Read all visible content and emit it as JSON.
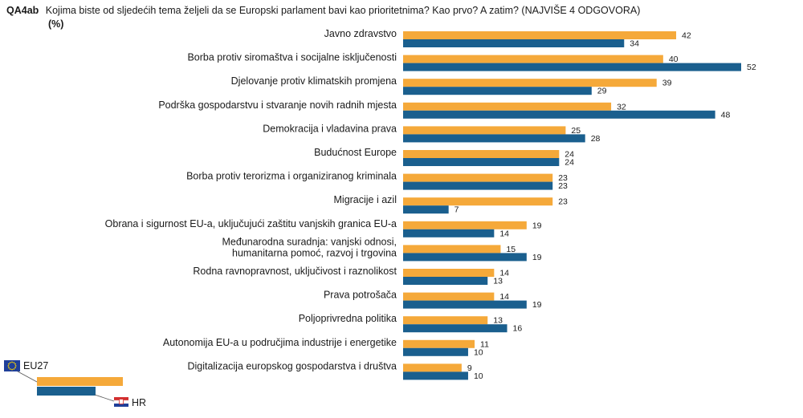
{
  "header": {
    "code": "QA4ab",
    "question": "Kojima biste od sljedećih tema željeli da se Europski parlament bavi kao prioritetnima? Kao prvo? A zatim? (NAJVIŠE 4 ODGOVORA)",
    "unit": "(%)"
  },
  "colors": {
    "eu27": "#f5a93a",
    "hr": "#1a5f8e"
  },
  "icons": {
    "eu27": "eu-flag-icon",
    "hr": "croatia-flag-icon"
  },
  "chart_data": {
    "type": "bar",
    "orientation": "horizontal",
    "unit": "%",
    "categories": [
      "Javno zdravstvo",
      "Borba protiv siromaštva i socijalne isključenosti",
      "Djelovanje protiv klimatskih promjena",
      "Podrška gospodarstvu i stvaranje novih radnih mjesta",
      "Demokracija i vladavina prava",
      "Budućnost Europe",
      "Borba protiv terorizma i organiziranog kriminala",
      "Migracije i azil",
      "Obrana i sigurnost EU-a, uključujući zaštitu vanjskih granica EU-a",
      "Međunarodna suradnja: vanjski odnosi,\nhumanitarna pomoć, razvoj i trgovina",
      "Rodna ravnopravnost, uključivost i raznolikost",
      "Prava potrošača",
      "Poljoprivredna politika",
      "Autonomija EU-a u područjima industrije i energetike",
      "Digitalizacija europskog gospodarstva i društva"
    ],
    "series": [
      {
        "name": "EU27",
        "values": [
          42,
          40,
          39,
          32,
          25,
          24,
          23,
          23,
          19,
          15,
          14,
          14,
          13,
          11,
          9
        ]
      },
      {
        "name": "HR",
        "values": [
          34,
          52,
          29,
          48,
          28,
          24,
          23,
          7,
          14,
          19,
          13,
          19,
          16,
          10,
          10
        ]
      }
    ],
    "xlim": [
      0,
      52
    ],
    "grid": false,
    "legend_position": "bottom-left"
  }
}
